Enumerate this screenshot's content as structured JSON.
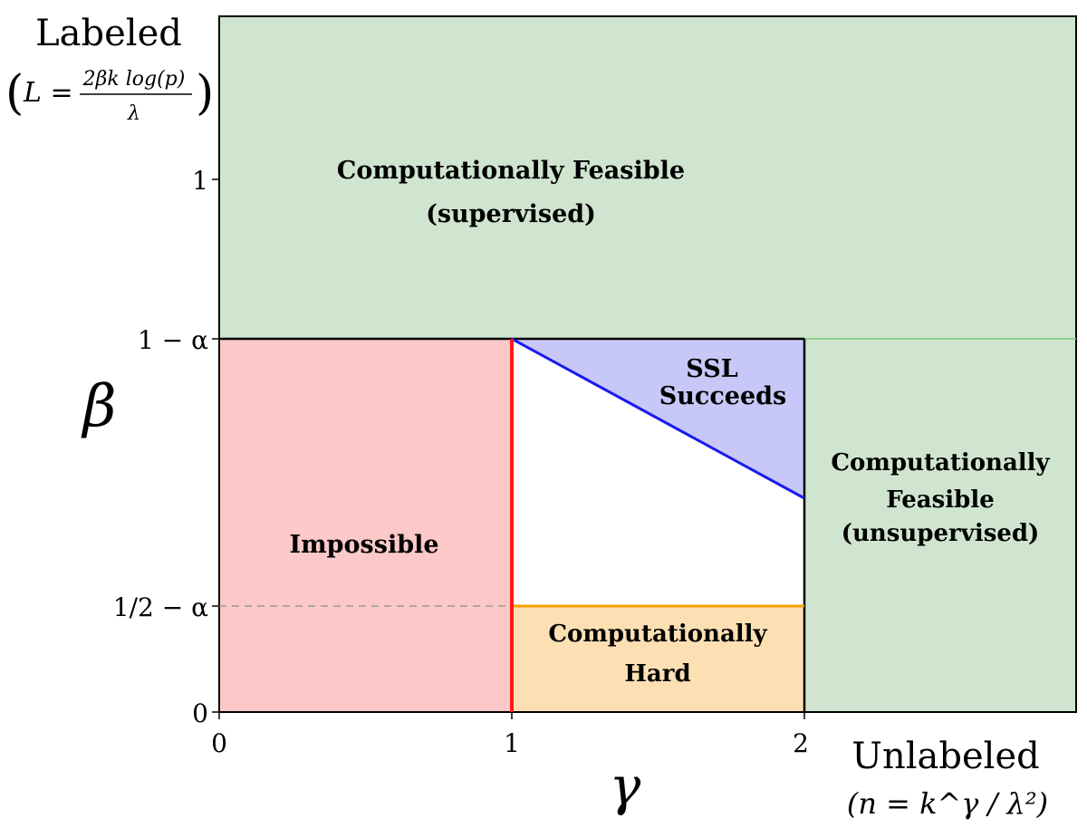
{
  "axes": {
    "y_title": "Labeled",
    "y_title_formula": {
      "lhs": "L =",
      "numerator": "2βk log(p)",
      "denominator": "λ"
    },
    "y_symbol": "β",
    "x_symbol": "γ",
    "x_title": "Unlabeled",
    "x_title_formula": "(n = k^γ / λ²)",
    "x_ticks": [
      "0",
      "1",
      "2"
    ],
    "y_ticks": [
      "0",
      "1/2 − α",
      "1 − α",
      "1"
    ]
  },
  "regions": {
    "feasible_supervised": {
      "line1": "Computationally Feasible",
      "line2": "(supervised)"
    },
    "feasible_unsupervised": {
      "line1": "Computationally",
      "line2": "Feasible",
      "line3": "(unsupervised)"
    },
    "impossible": {
      "label": "Impossible"
    },
    "ssl_succeeds": {
      "line1": "SSL",
      "line2": "Succeeds"
    },
    "hard": {
      "line1": "Computationally",
      "line2": "Hard"
    }
  },
  "colors": {
    "feasible": "#cfe5cf",
    "impossible": "#fcc8c8",
    "ssl": "#c8c8f8",
    "hard": "#fce0b4",
    "red_boundary": "#ff1a1a",
    "blue_boundary": "#1a1aee",
    "orange_boundary": "#ffa000",
    "green_line": "#7cc47c"
  }
}
